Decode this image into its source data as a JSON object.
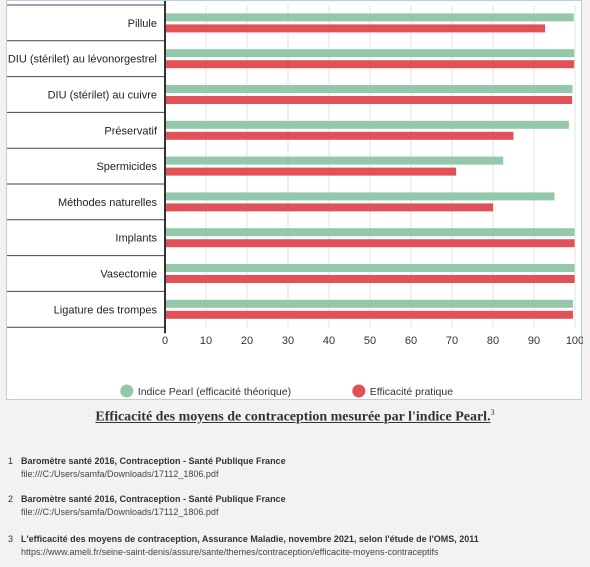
{
  "chart_data": {
    "type": "bar",
    "orientation": "horizontal",
    "categories": [
      "Pillule",
      "DIU (stérilet) au lévonorgestrel",
      "DIU (stérilet) au cuivre",
      "Préservatif",
      "Spermicides",
      "Méthodes naturelles",
      "Implants",
      "Vasectomie",
      "Ligature des trompes"
    ],
    "series": [
      {
        "name": "Indice Pearl (efficacité théorique)",
        "color": "#93c9aa",
        "values": [
          99.7,
          99.8,
          99.4,
          98.5,
          82.5,
          95,
          99.9,
          99.9,
          99.5
        ]
      },
      {
        "name": "Efficacité pratique",
        "color": "#e05158",
        "values": [
          92.7,
          99.8,
          99.3,
          85,
          71,
          80,
          99.9,
          99.9,
          99.5
        ]
      }
    ],
    "xlim": [
      0,
      100
    ],
    "xticks": [
      0,
      10,
      20,
      30,
      40,
      50,
      60,
      70,
      80,
      90,
      100
    ],
    "grid": true,
    "legend_position": "bottom-center"
  },
  "caption": {
    "title": "Efficacité des moyens de contraception mesurée par l'indice Pearl.",
    "sup": "3"
  },
  "footnotes": [
    {
      "num": "1",
      "title": "Baromètre santé 2016, Contraception - Santé Publique France",
      "detail": "file:///C:/Users/samfa/Downloads/17112_1806.pdf"
    },
    {
      "num": "2",
      "title": "Baromètre santé 2016, Contraception - Santé Publique France",
      "detail": "file:///C:/Users/samfa/Downloads/17112_1806.pdf"
    },
    {
      "num": "3",
      "title": "L'efficacité des moyens de contraception, Assurance Maladie, novembre 2021, selon l'étude de l'OMS, 2011",
      "detail": "https://www.ameli.fr/seine-saint-denis/assure/sante/themes/contraception/efficacite-moyens-contraceptifs"
    }
  ]
}
